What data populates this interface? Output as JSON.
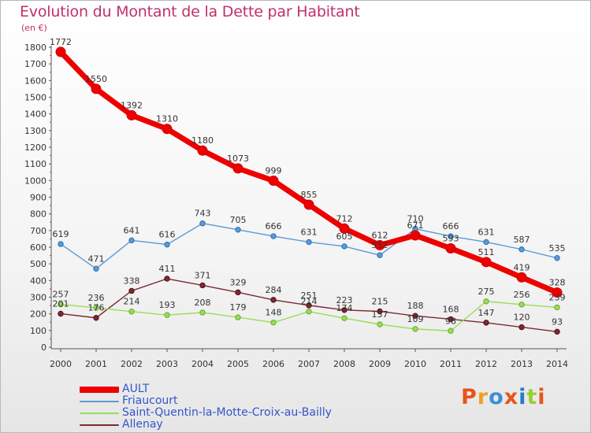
{
  "chart_data": {
    "type": "line",
    "title": "Evolution du Montant de la Dette par Habitant",
    "ylabel": "(en €)",
    "xlabel": "",
    "x": [
      "2000",
      "2001",
      "2002",
      "2003",
      "2004",
      "2005",
      "2006",
      "2007",
      "2008",
      "2009",
      "2010",
      "2011",
      "2012",
      "2013",
      "2014"
    ],
    "ylim": [
      0,
      1800
    ],
    "yticks": [
      0,
      100,
      200,
      300,
      400,
      500,
      600,
      700,
      800,
      900,
      1000,
      1100,
      1200,
      1300,
      1400,
      1500,
      1600,
      1700,
      1800
    ],
    "grid": false,
    "legend_position": "bottom-left",
    "series": [
      {
        "name": "AULT",
        "color": "#ee0000",
        "values": [
          1772,
          1550,
          1392,
          1310,
          1180,
          1073,
          999,
          855,
          712,
          612,
          671,
          593,
          511,
          419,
          328
        ]
      },
      {
        "name": "Friaucourt",
        "color": "#5b9bd5",
        "values": [
          619,
          471,
          641,
          616,
          743,
          705,
          666,
          631,
          605,
          552,
          710,
          666,
          631,
          587,
          535
        ]
      },
      {
        "name": "Saint-Quentin-la-Motte-Croix-au-Bailly",
        "color": "#99dd55",
        "values": [
          257,
          236,
          214,
          193,
          208,
          179,
          148,
          214,
          174,
          137,
          109,
          98,
          275,
          256,
          239
        ]
      },
      {
        "name": "Allenay",
        "color": "#7a2a32",
        "values": [
          201,
          176,
          338,
          411,
          371,
          329,
          284,
          251,
          223,
          215,
          188,
          168,
          147,
          120,
          93
        ]
      }
    ]
  },
  "brand": {
    "letters": [
      "P",
      "r",
      "o",
      "x",
      "i",
      "t",
      "i"
    ],
    "colors": [
      "#e8541a",
      "#f0a020",
      "#3b8fd6",
      "#e8541a",
      "#2a7ac8",
      "#9acd32",
      "#e8541a"
    ]
  }
}
